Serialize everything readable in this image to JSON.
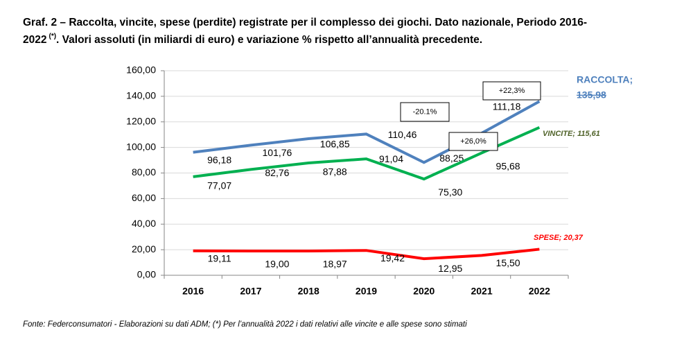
{
  "chart_data": {
    "type": "line",
    "title": [
      "Graf. 2 – Raccolta, vincite, spese (perdite) registrate per il complesso dei giochi. Dato nazionale, Periodo 2016-",
      "2022",
      "(*)",
      ". Valori assoluti (in miliardi di euro) e variazione % rispetto all’annualità precedente."
    ],
    "categories": [
      "2016",
      "2017",
      "2018",
      "2019",
      "2020",
      "2021",
      "2022"
    ],
    "series": [
      {
        "name": "RACCOLTA;",
        "color": "#4f81bd",
        "values": [
          96.18,
          101.76,
          106.85,
          110.46,
          88.25,
          111.18,
          135.98
        ],
        "value_labels": [
          "96,18",
          "101,76",
          "106,85",
          "110,46",
          "88,25",
          "111,18",
          "135,98"
        ]
      },
      {
        "name": "VINCITE;",
        "color": "#00b050",
        "values": [
          77.07,
          82.76,
          87.88,
          91.04,
          75.3,
          95.68,
          115.61
        ],
        "value_labels": [
          "77,07",
          "82,76",
          "87,88",
          "91,04",
          "75,30",
          "95,68",
          "115,61"
        ]
      },
      {
        "name": "SPESE;",
        "color": "#ff0000",
        "values": [
          19.11,
          19.0,
          18.97,
          19.42,
          12.95,
          15.5,
          20.37
        ],
        "value_labels": [
          "19,11",
          "19,00",
          "18,97",
          "19,42",
          "12,95",
          "15,50",
          "20,37"
        ]
      }
    ],
    "annotations": [
      "+22,3%",
      "-20.1%",
      "+26,0%"
    ],
    "ylim": [
      0,
      160
    ],
    "yticks": [
      {
        "value": 0,
        "label": "0,00"
      },
      {
        "value": 20,
        "label": "20,00"
      },
      {
        "value": 40,
        "label": "40,00"
      },
      {
        "value": 60,
        "label": "60,00"
      },
      {
        "value": 80,
        "label": "80,00"
      },
      {
        "value": 100,
        "label": "100,00"
      },
      {
        "value": 120,
        "label": "120,00"
      },
      {
        "value": 140,
        "label": "140,00"
      },
      {
        "value": 160,
        "label": "160,00"
      }
    ],
    "grid": true,
    "source": "Fonte: Federconsumatori - Elaborazioni su dati ADM; (*) Per l’annualità 2022 i dati relativi alle vincite e alle spese sono stimati"
  }
}
